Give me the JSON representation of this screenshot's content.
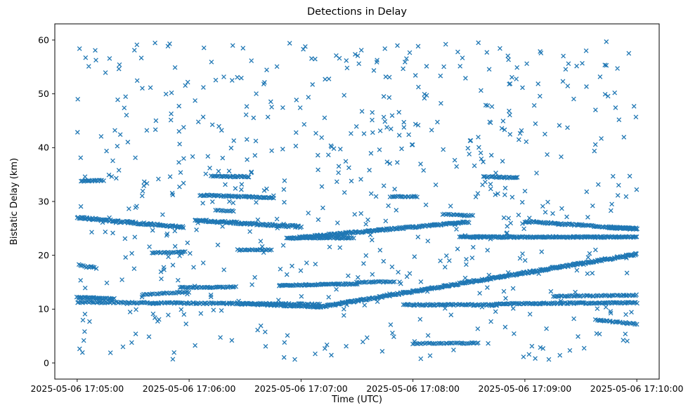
{
  "chart_data": {
    "type": "scatter",
    "title": "Detections in Delay",
    "xlabel": "Time (UTC)",
    "ylabel": "Bistatic Delay (km)",
    "grid": false,
    "legend": null,
    "marker": {
      "shape": "x",
      "color": "#1f77b4"
    },
    "time_unit": "seconds after 2025-05-06 17:05:00 UTC",
    "x_ticks": [
      {
        "t": 0,
        "label": "2025-05-06 17:05:00"
      },
      {
        "t": 60,
        "label": "2025-05-06 17:06:00"
      },
      {
        "t": 120,
        "label": "2025-05-06 17:07:00"
      },
      {
        "t": 180,
        "label": "2025-05-06 17:08:00"
      },
      {
        "t": 240,
        "label": "2025-05-06 17:09:00"
      },
      {
        "t": 300,
        "label": "2025-05-06 17:10:00"
      }
    ],
    "y_ticks": [
      0,
      10,
      20,
      30,
      40,
      50,
      60
    ],
    "x_domain_seconds": [
      -12,
      312
    ],
    "y_domain": [
      -3,
      63
    ],
    "tracks": [
      {
        "t0": 0,
        "t1": 57,
        "d0": 27.0,
        "d1": 25.2,
        "pps": 2.0,
        "j": 0.18
      },
      {
        "t0": 63,
        "t1": 120,
        "d0": 26.5,
        "d1": 25.3,
        "pps": 2.0,
        "j": 0.18
      },
      {
        "t0": 112,
        "t1": 210,
        "d0": 23.1,
        "d1": 26.2,
        "pps": 2.0,
        "j": 0.16
      },
      {
        "t0": 205,
        "t1": 300,
        "d0": 23.4,
        "d1": 23.4,
        "pps": 2.0,
        "j": 0.12
      },
      {
        "t0": 240,
        "t1": 300,
        "d0": 26.3,
        "d1": 24.9,
        "pps": 1.6,
        "j": 0.15
      },
      {
        "t0": 285,
        "t1": 300,
        "d0": 25.1,
        "d1": 25.0,
        "pps": 2.5,
        "j": 0.12
      },
      {
        "t0": 0,
        "t1": 20,
        "d0": 12.2,
        "d1": 11.9,
        "pps": 1.6,
        "j": 0.12
      },
      {
        "t0": 0,
        "t1": 130,
        "d0": 11.3,
        "d1": 10.9,
        "pps": 1.3,
        "j": 0.12
      },
      {
        "t0": 55,
        "t1": 85,
        "d0": 14.0,
        "d1": 14.1,
        "pps": 1.3,
        "j": 0.1
      },
      {
        "t0": 35,
        "t1": 60,
        "d0": 12.7,
        "d1": 13.2,
        "pps": 1.1,
        "j": 0.1
      },
      {
        "t0": 108,
        "t1": 150,
        "d0": 14.4,
        "d1": 14.7,
        "pps": 1.6,
        "j": 0.1
      },
      {
        "t0": 150,
        "t1": 170,
        "d0": 15.0,
        "d1": 15.1,
        "pps": 1.2,
        "j": 0.1
      },
      {
        "t0": 128,
        "t1": 300,
        "d0": 10.3,
        "d1": 20.2,
        "pps": 2.2,
        "j": 0.18
      },
      {
        "t0": 88,
        "t1": 130,
        "d0": 11.0,
        "d1": 10.4,
        "pps": 1.5,
        "j": 0.12
      },
      {
        "t0": 175,
        "t1": 225,
        "d0": 10.8,
        "d1": 10.8,
        "pps": 1.5,
        "j": 0.12
      },
      {
        "t0": 225,
        "t1": 300,
        "d0": 11.0,
        "d1": 11.2,
        "pps": 1.5,
        "j": 0.12
      },
      {
        "t0": 255,
        "t1": 300,
        "d0": 12.4,
        "d1": 12.6,
        "pps": 1.2,
        "j": 0.1
      },
      {
        "t0": 180,
        "t1": 215,
        "d0": 3.6,
        "d1": 3.7,
        "pps": 1.1,
        "j": 0.1
      },
      {
        "t0": 66,
        "t1": 105,
        "d0": 31.2,
        "d1": 30.7,
        "pps": 1.6,
        "j": 0.12
      },
      {
        "t0": 168,
        "t1": 182,
        "d0": 30.9,
        "d1": 30.9,
        "pps": 1.3,
        "j": 0.1
      },
      {
        "t0": 72,
        "t1": 92,
        "d0": 34.7,
        "d1": 34.6,
        "pps": 1.5,
        "j": 0.1
      },
      {
        "t0": 218,
        "t1": 236,
        "d0": 34.6,
        "d1": 34.4,
        "pps": 1.5,
        "j": 0.1
      },
      {
        "t0": 2,
        "t1": 14,
        "d0": 33.8,
        "d1": 33.9,
        "pps": 1.5,
        "j": 0.1
      },
      {
        "t0": 40,
        "t1": 58,
        "d0": 20.5,
        "d1": 20.6,
        "pps": 1.2,
        "j": 0.1
      },
      {
        "t0": 86,
        "t1": 104,
        "d0": 21.0,
        "d1": 21.0,
        "pps": 1.2,
        "j": 0.1
      },
      {
        "t0": 74,
        "t1": 84,
        "d0": 28.4,
        "d1": 28.2,
        "pps": 1.2,
        "j": 0.1
      },
      {
        "t0": 196,
        "t1": 212,
        "d0": 27.6,
        "d1": 27.4,
        "pps": 1.2,
        "j": 0.1
      },
      {
        "t0": 278,
        "t1": 300,
        "d0": 8.0,
        "d1": 7.2,
        "pps": 1.3,
        "j": 0.12
      },
      {
        "t0": 120,
        "t1": 148,
        "d0": 23.3,
        "d1": 23.2,
        "pps": 1.6,
        "j": 0.1
      },
      {
        "t0": 1,
        "t1": 10,
        "d0": 18.2,
        "d1": 17.6,
        "pps": 1.4,
        "j": 0.2
      }
    ],
    "noise": {
      "count": 620,
      "seed": 7,
      "t_range": [
        0,
        300
      ],
      "d_range": [
        0.5,
        59.8
      ]
    }
  }
}
